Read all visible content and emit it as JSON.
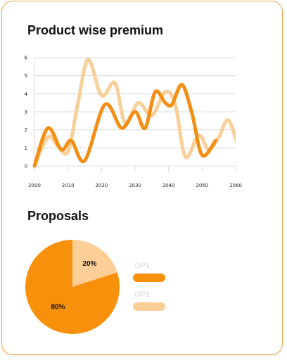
{
  "charts": {
    "line_title": "Product wise premium",
    "pie_title": "Proposals"
  },
  "chart_data": [
    {
      "type": "line",
      "title": "Product wise premium",
      "xlabel": "",
      "ylabel": "",
      "xlim": [
        2000,
        2060
      ],
      "ylim": [
        0,
        6
      ],
      "xticks": [
        2000,
        2010,
        2020,
        2030,
        2040,
        2050,
        2060
      ],
      "yticks": [
        0,
        1,
        2,
        3,
        4,
        5,
        6
      ],
      "grid": "horizontal",
      "curve": "smooth",
      "series": [
        {
          "color": "#f9cf98",
          "width": 5,
          "x": [
            2000,
            2004,
            2007,
            2010,
            2013,
            2016,
            2020,
            2024,
            2027,
            2031,
            2035,
            2039,
            2042,
            2045,
            2049,
            2052,
            2055,
            2058,
            2062
          ],
          "y": [
            0,
            1.6,
            1.1,
            0.8,
            3.5,
            5.9,
            3.9,
            4.6,
            2.4,
            3.5,
            2.8,
            4.1,
            3.4,
            0.5,
            1.7,
            0.9,
            1.6,
            2.5,
            0.2
          ]
        },
        {
          "color": "#f38e15",
          "width": 5,
          "x": [
            2000,
            2004,
            2008,
            2011,
            2015,
            2021,
            2026,
            2030,
            2033,
            2036,
            2039,
            2041,
            2044,
            2047,
            2050,
            2054
          ],
          "y": [
            0,
            2.1,
            0.9,
            1.4,
            0.3,
            3.4,
            2.1,
            3.0,
            2.1,
            4.1,
            3.5,
            3.4,
            4.5,
            2.9,
            0.6,
            1.4
          ]
        }
      ]
    },
    {
      "type": "pie",
      "title": "Proposals",
      "slices": [
        {
          "label": "OP2",
          "value": 20,
          "display": "20%",
          "color": "#fdcf96"
        },
        {
          "label": "OP1",
          "value": 80,
          "display": "80%",
          "color": "#f7910c"
        }
      ],
      "legend": [
        {
          "label": "OP1",
          "color": "#f7910c"
        },
        {
          "label": "OP2",
          "color": "#fdcf96"
        }
      ],
      "legend_position": "right"
    }
  ]
}
